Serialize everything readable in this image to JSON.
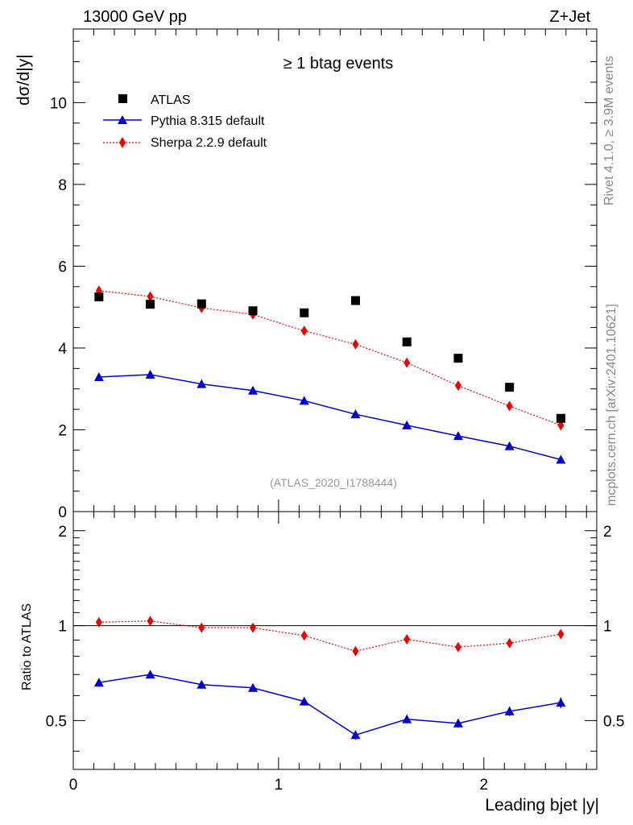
{
  "header": {
    "left": "13000 GeV pp",
    "right": "Z+Jet"
  },
  "side_labels": {
    "rivet": "Rivet 4.1.0, ≥ 3.9M events",
    "mcplots": "mcplots.cern.ch [arXiv:2401.10621]"
  },
  "colors": {
    "atlas": "#000000",
    "pythia": "#0000cc",
    "sherpa": "#ee0000"
  },
  "chart_data": [
    {
      "type": "scatter",
      "title": "≥ 1 btag events",
      "watermark": "(ATLAS_2020_I1788444)",
      "ylabel": "dσ/d|y|",
      "xlabel": "",
      "xlim": [
        0,
        2.55
      ],
      "ylim": [
        0,
        11.8
      ],
      "yticks": [
        "0",
        "2",
        "4",
        "6",
        "8",
        "10"
      ],
      "legend": [
        "ATLAS",
        "Pythia 8.315 default",
        "Sherpa 2.2.9 default"
      ],
      "x": [
        0.125,
        0.375,
        0.625,
        0.875,
        1.125,
        1.375,
        1.625,
        1.875,
        2.125,
        2.375
      ],
      "series": [
        {
          "name": "ATLAS",
          "values": [
            5.25,
            5.07,
            5.08,
            4.91,
            4.86,
            5.16,
            4.15,
            3.75,
            3.04,
            2.28
          ]
        },
        {
          "name": "Pythia 8.315 default",
          "values": [
            3.29,
            3.35,
            3.12,
            2.96,
            2.71,
            2.38,
            2.11,
            1.85,
            1.6,
            1.27
          ]
        },
        {
          "name": "Sherpa 2.2.9 default",
          "values": [
            5.4,
            5.26,
            4.98,
            4.82,
            4.42,
            4.09,
            3.64,
            3.08,
            2.58,
            2.11
          ]
        }
      ]
    },
    {
      "type": "line",
      "title": "",
      "ylabel": "Ratio to ATLAS",
      "xlabel": "Leading bjet |y|",
      "xlim": [
        0,
        2.55
      ],
      "ylim": [
        0.35,
        2.3
      ],
      "xticks": [
        "0",
        "1",
        "2"
      ],
      "yticks": [
        "0.5",
        "1",
        "2"
      ],
      "x": [
        0.125,
        0.375,
        0.625,
        0.875,
        1.125,
        1.375,
        1.625,
        1.875,
        2.125,
        2.375
      ],
      "series": [
        {
          "name": "Pythia 8.315 default",
          "values": [
            0.66,
            0.7,
            0.65,
            0.635,
            0.575,
            0.45,
            0.505,
            0.49,
            0.535,
            0.57
          ],
          "errors": [
            0.008,
            0.008,
            0.008,
            0.008,
            0.008,
            0.015,
            0.015,
            0.015,
            0.018,
            0.022
          ]
        },
        {
          "name": "Sherpa 2.2.9 default",
          "values": [
            1.025,
            1.035,
            0.985,
            0.985,
            0.93,
            0.83,
            0.905,
            0.855,
            0.88,
            0.94
          ]
        }
      ]
    }
  ]
}
